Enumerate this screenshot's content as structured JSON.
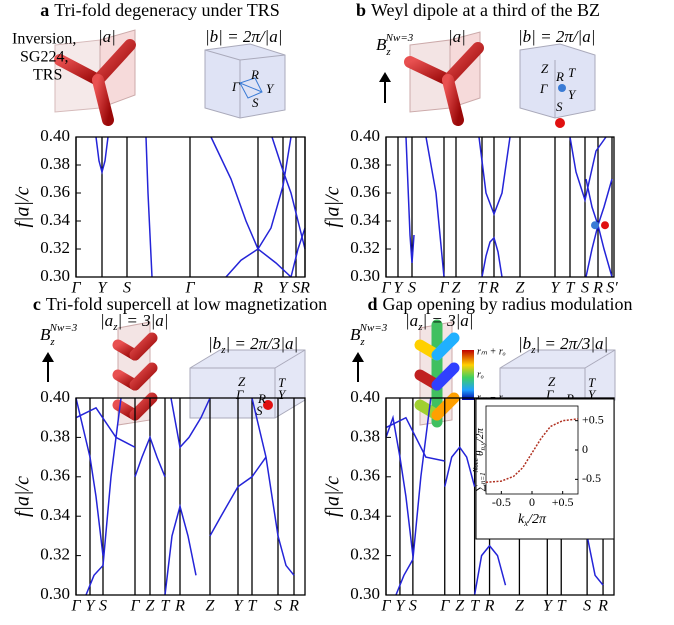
{
  "chart_data": [
    {
      "type": "line",
      "panel": "a",
      "title": "Tri-fold degeneracy under TRS",
      "ylabel": "f|a|/c",
      "labels": [
        "Inversion,",
        "SG224,",
        "TRS",
        "|a|",
        "|b| = 2π/|a|",
        "Γ",
        "R",
        "Y",
        "S"
      ],
      "xlim": [
        0,
        229
      ],
      "ylim": [
        0.3,
        0.4
      ],
      "xticks": [
        {
          "value": 0,
          "label": "Γ"
        },
        {
          "value": 26,
          "label": "Y"
        },
        {
          "value": 51,
          "label": "S"
        },
        {
          "value": 114,
          "label": "Γ"
        },
        {
          "value": 182,
          "label": "R"
        },
        {
          "value": 207,
          "label": "Y"
        },
        {
          "value": 220,
          "label": "S"
        },
        {
          "value": 229,
          "label": "R"
        }
      ],
      "yticks": [
        {
          "value": 0.3,
          "label": "0.30"
        },
        {
          "value": 0.32,
          "label": "0.32"
        },
        {
          "value": 0.34,
          "label": "0.34"
        },
        {
          "value": 0.36,
          "label": "0.36"
        },
        {
          "value": 0.38,
          "label": "0.38"
        },
        {
          "value": 0.4,
          "label": "0.40"
        }
      ],
      "series": [
        {
          "color": "#2424d8",
          "x": [
            20,
            23,
            26,
            29,
            32
          ],
          "values": [
            0.4,
            0.383,
            0.375,
            0.383,
            0.4
          ]
        },
        {
          "color": "#2424d8",
          "x": [
            70,
            72,
            74,
            76
          ],
          "values": [
            0.4,
            0.36,
            0.33,
            0.3
          ]
        },
        {
          "color": "#2424d8",
          "x": [
            135,
            155,
            170,
            182,
            195,
            207,
            215
          ],
          "values": [
            0.4,
            0.37,
            0.34,
            0.32,
            0.335,
            0.365,
            0.4
          ]
        },
        {
          "color": "#2424d8",
          "x": [
            150,
            165,
            182,
            200,
            215
          ],
          "values": [
            0.3,
            0.312,
            0.32,
            0.31,
            0.3
          ]
        },
        {
          "color": "#2424d8",
          "x": [
            196,
            207,
            215,
            222,
            229
          ],
          "values": [
            0.4,
            0.376,
            0.36,
            0.34,
            0.32
          ]
        },
        {
          "color": "#2424d8",
          "x": [
            215,
            222,
            229
          ],
          "values": [
            0.3,
            0.32,
            0.335
          ]
        }
      ]
    },
    {
      "type": "line",
      "panel": "b",
      "title": "Weyl dipole at a third of the BZ",
      "ylabel": "f|a|/c",
      "field": [
        "B",
        "z",
        "Nw=3"
      ],
      "labels": [
        "|a|",
        "|b| = 2π/|a|",
        "Z",
        "R",
        "T",
        "Γ",
        "Y",
        "S"
      ],
      "xlim": [
        0,
        228
      ],
      "ylim": [
        0.3,
        0.4
      ],
      "xticks": [
        {
          "value": 0,
          "label": "Γ"
        },
        {
          "value": 12,
          "label": "Y"
        },
        {
          "value": 26,
          "label": "S"
        },
        {
          "value": 58,
          "label": "Γ"
        },
        {
          "value": 70,
          "label": "Z"
        },
        {
          "value": 96,
          "label": "T"
        },
        {
          "value": 108,
          "label": "R"
        },
        {
          "value": 134,
          "label": "Z"
        },
        {
          "value": 169,
          "label": "Y"
        },
        {
          "value": 184,
          "label": "T"
        },
        {
          "value": 199,
          "label": "S"
        },
        {
          "value": 212,
          "label": "R"
        },
        {
          "value": 226,
          "label": "S′"
        }
      ],
      "yticks": [
        {
          "value": 0.3,
          "label": "0.30"
        },
        {
          "value": 0.32,
          "label": "0.32"
        },
        {
          "value": 0.34,
          "label": "0.34"
        },
        {
          "value": 0.36,
          "label": "0.36"
        },
        {
          "value": 0.38,
          "label": "0.38"
        },
        {
          "value": 0.4,
          "label": "0.40"
        }
      ],
      "series": [
        {
          "color": "#2424d8",
          "x": [
            20,
            24,
            26,
            28
          ],
          "values": [
            0.4,
            0.33,
            0.31,
            0.33
          ]
        },
        {
          "color": "#2424d8",
          "x": [
            96,
            100,
            104,
            108,
            112,
            116
          ],
          "values": [
            0.3,
            0.315,
            0.325,
            0.328,
            0.318,
            0.3
          ]
        },
        {
          "color": "#2424d8",
          "x": [
            93,
            100,
            108,
            116,
            124
          ],
          "values": [
            0.4,
            0.36,
            0.345,
            0.36,
            0.4
          ]
        },
        {
          "color": "#2424d8",
          "x": [
            40,
            50,
            58
          ],
          "values": [
            0.4,
            0.36,
            0.3
          ]
        },
        {
          "color": "#2424d8",
          "x": [
            200,
            206,
            212,
            218,
            226
          ],
          "values": [
            0.3,
            0.32,
            0.337,
            0.35,
            0.37
          ]
        },
        {
          "color": "#2424d8",
          "x": [
            200,
            206,
            212,
            218,
            226
          ],
          "values": [
            0.37,
            0.35,
            0.337,
            0.32,
            0.3
          ]
        },
        {
          "color": "#2424d8",
          "x": [
            184,
            190,
            199,
            210,
            220
          ],
          "values": [
            0.4,
            0.375,
            0.355,
            0.39,
            0.4
          ]
        }
      ],
      "points": [
        {
          "x": 209,
          "y": 0.337,
          "color": "#3a7bd5"
        },
        {
          "x": 219,
          "y": 0.337,
          "color": "#e01010"
        }
      ]
    },
    {
      "type": "line",
      "panel": "c",
      "title": "Tri-fold supercell at low magnetization",
      "ylabel": "f|a|/c",
      "field": [
        "B",
        "z",
        "Nw=3"
      ],
      "labels": [
        "|a",
        "z",
        "| = 3|a|",
        "|b",
        "z",
        "| = 2π/3|a|",
        "Z",
        "T",
        "Γ",
        "Y",
        "R",
        "S"
      ],
      "xlim": [
        0,
        229
      ],
      "ylim": [
        0.3,
        0.4
      ],
      "xticks": [
        {
          "value": 0,
          "label": "Γ"
        },
        {
          "value": 14,
          "label": "Y"
        },
        {
          "value": 27,
          "label": "S"
        },
        {
          "value": 59,
          "label": "Γ"
        },
        {
          "value": 74,
          "label": "Z"
        },
        {
          "value": 89,
          "label": "T"
        },
        {
          "value": 104,
          "label": "R"
        },
        {
          "value": 134,
          "label": "Z"
        },
        {
          "value": 162,
          "label": "Y"
        },
        {
          "value": 176,
          "label": "T"
        },
        {
          "value": 202,
          "label": "S"
        },
        {
          "value": 218,
          "label": "R"
        }
      ],
      "yticks": [
        {
          "value": 0.3,
          "label": "0.30"
        },
        {
          "value": 0.32,
          "label": "0.32"
        },
        {
          "value": 0.34,
          "label": "0.34"
        },
        {
          "value": 0.36,
          "label": "0.36"
        },
        {
          "value": 0.38,
          "label": "0.38"
        },
        {
          "value": 0.4,
          "label": "0.40"
        }
      ],
      "series": [
        {
          "color": "#2424d8",
          "x": [
            0,
            7,
            14,
            20,
            27
          ],
          "values": [
            0.4,
            0.385,
            0.37,
            0.35,
            0.32
          ]
        },
        {
          "color": "#2424d8",
          "x": [
            10,
            18,
            27,
            35,
            45
          ],
          "values": [
            0.3,
            0.31,
            0.315,
            0.36,
            0.4
          ]
        },
        {
          "color": "#2424d8",
          "x": [
            59,
            66,
            74,
            81,
            89
          ],
          "values": [
            0.36,
            0.37,
            0.38,
            0.37,
            0.36
          ]
        },
        {
          "color": "#2424d8",
          "x": [
            89,
            96,
            104,
            112,
            120
          ],
          "values": [
            0.3,
            0.33,
            0.345,
            0.33,
            0.31
          ]
        },
        {
          "color": "#2424d8",
          "x": [
            95,
            104,
            113,
            125,
            134
          ],
          "values": [
            0.4,
            0.375,
            0.38,
            0.39,
            0.4
          ]
        },
        {
          "color": "#2424d8",
          "x": [
            134,
            145,
            162,
            176,
            190
          ],
          "values": [
            0.33,
            0.34,
            0.355,
            0.36,
            0.37
          ]
        },
        {
          "color": "#2424d8",
          "x": [
            176,
            190,
            202,
            210,
            218
          ],
          "values": [
            0.4,
            0.37,
            0.33,
            0.315,
            0.31
          ]
        },
        {
          "color": "#2424d8",
          "x": [
            0,
            20,
            40,
            59
          ],
          "values": [
            0.39,
            0.395,
            0.38,
            0.375
          ]
        }
      ]
    },
    {
      "type": "line",
      "panel": "d",
      "title": "Gap opening by radius modulation",
      "ylabel": "f|a|/c",
      "field": [
        "B",
        "z",
        "Nw=3"
      ],
      "labels": [
        "|a",
        "z",
        "| = 3|a|",
        "|b",
        "z",
        "| = 2π/3|a|",
        "Z",
        "T",
        "Γ",
        "Y",
        "R",
        "S",
        "rₘ + rₒ",
        "rₒ",
        "rₘ − rₒ"
      ],
      "xlim": [
        0,
        229
      ],
      "ylim": [
        0.3,
        0.4
      ],
      "xticks": [
        {
          "value": 0,
          "label": "Γ"
        },
        {
          "value": 14,
          "label": "Y"
        },
        {
          "value": 27,
          "label": "S"
        },
        {
          "value": 59,
          "label": "Γ"
        },
        {
          "value": 74,
          "label": "Z"
        },
        {
          "value": 89,
          "label": "T"
        },
        {
          "value": 104,
          "label": "R"
        },
        {
          "value": 134,
          "label": "Z"
        },
        {
          "value": 162,
          "label": "Y"
        },
        {
          "value": 176,
          "label": "T"
        },
        {
          "value": 202,
          "label": "S"
        },
        {
          "value": 218,
          "label": "R"
        }
      ],
      "yticks": [
        {
          "value": 0.3,
          "label": "0.30"
        },
        {
          "value": 0.32,
          "label": "0.32"
        },
        {
          "value": 0.34,
          "label": "0.34"
        },
        {
          "value": 0.36,
          "label": "0.36"
        },
        {
          "value": 0.38,
          "label": "0.38"
        },
        {
          "value": 0.4,
          "label": "0.40"
        }
      ],
      "series": [
        {
          "color": "#2424d8",
          "x": [
            0,
            7,
            14,
            20,
            27
          ],
          "values": [
            0.38,
            0.39,
            0.37,
            0.35,
            0.32
          ]
        },
        {
          "color": "#2424d8",
          "x": [
            10,
            18,
            27,
            35,
            45
          ],
          "values": [
            0.3,
            0.31,
            0.318,
            0.36,
            0.4
          ]
        },
        {
          "color": "#2424d8",
          "x": [
            59,
            66,
            74,
            81,
            89
          ],
          "values": [
            0.355,
            0.37,
            0.375,
            0.37,
            0.355
          ]
        },
        {
          "color": "#2424d8",
          "x": [
            89,
            96,
            104,
            112,
            120
          ],
          "values": [
            0.3,
            0.32,
            0.325,
            0.32,
            0.305
          ]
        },
        {
          "color": "#2424d8",
          "x": [
            95,
            104,
            113,
            125,
            134
          ],
          "values": [
            0.4,
            0.38,
            0.382,
            0.39,
            0.4
          ]
        },
        {
          "color": "#2424d8",
          "x": [
            134,
            145,
            162,
            176,
            190
          ],
          "values": [
            0.33,
            0.335,
            0.35,
            0.355,
            0.365
          ]
        },
        {
          "color": "#2424d8",
          "x": [
            176,
            190,
            202,
            210,
            218
          ],
          "values": [
            0.39,
            0.36,
            0.33,
            0.31,
            0.305
          ]
        },
        {
          "color": "#2424d8",
          "x": [
            0,
            20,
            40,
            59
          ],
          "values": [
            0.385,
            0.39,
            0.37,
            0.368
          ]
        }
      ],
      "inset": {
        "type": "line",
        "xlim": [
          -0.75,
          0.75
        ],
        "ylim": [
          -0.75,
          0.75
        ],
        "xticks": [
          -0.5,
          0,
          {
            "value": 0.5,
            "label": "+0.5"
          }
        ],
        "yticks": [
          {
            "value": 0.5,
            "label": "+0.5"
          },
          0,
          -0.5
        ],
        "xlabel": [
          "k",
          "x",
          "/2π"
        ],
        "ylabel": [
          "∑",
          "n=1",
          "Nocc",
          "θ",
          "n,y",
          "/2π"
        ],
        "series": [
          {
            "color": "#b03020",
            "x": [
              -0.75,
              -0.5,
              -0.3,
              -0.15,
              0,
              0.15,
              0.3,
              0.5,
              0.75
            ],
            "values": [
              -0.55,
              -0.53,
              -0.45,
              -0.3,
              -0.05,
              0.2,
              0.4,
              0.5,
              0.53
            ]
          }
        ]
      }
    }
  ]
}
